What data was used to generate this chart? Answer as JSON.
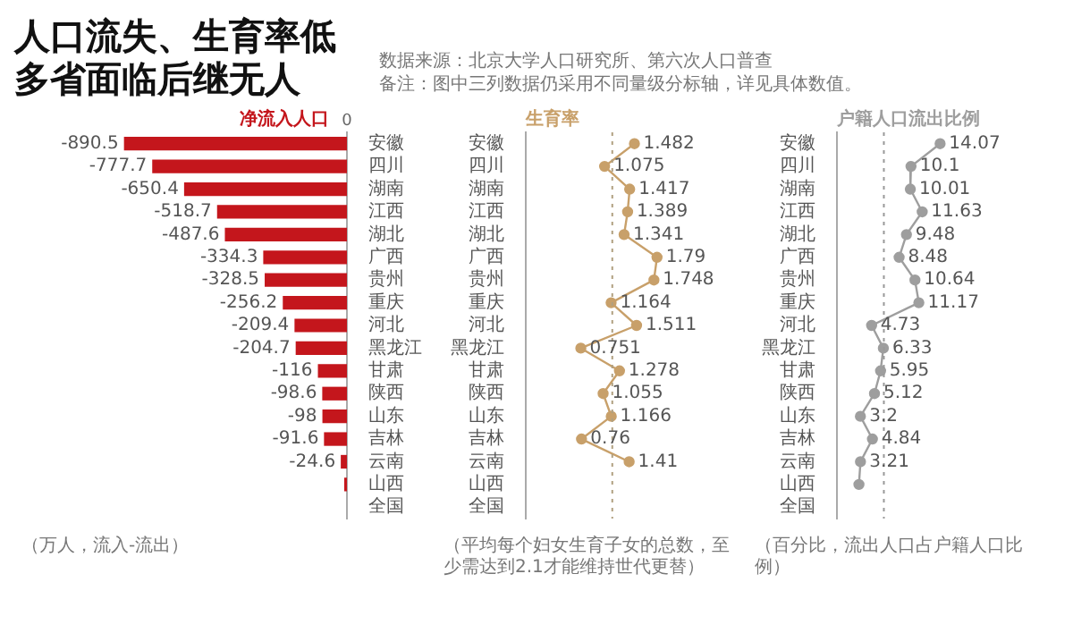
{
  "chart_data": [
    {
      "type": "bar",
      "orientation": "horizontal",
      "title": "人口流失、生育率低多省面临后继无人",
      "tick_labels": "y",
      "annotations": [
        "数据来源：北京大学人口研究所、第六次人口普查",
        "备注：图中三列数据仍采用不同量级分标轴，详见具体数值。",
        "0",
        "（万人，流入-流出）"
      ],
      "categories": [
        "安徽",
        "四川",
        "湖南",
        "江西",
        "湖北",
        "广西",
        "贵州",
        "重庆",
        "河北",
        "黑龙江",
        "甘肃",
        "陕西",
        "山东",
        "吉林",
        "云南",
        "山西",
        "全国"
      ],
      "series": [
        {
          "name": "净流入人口",
          "color": "#c4161c",
          "values": [
            -890.5,
            -777.7,
            -650.4,
            -518.7,
            -487.6,
            -334.3,
            -328.5,
            -256.2,
            -209.4,
            -204.7,
            -116,
            -98.6,
            -98,
            -91.6,
            -24.6,
            -11,
            null
          ],
          "value_labels": [
            "-890.5",
            "-777.7",
            "-650.4",
            "-518.7",
            "-487.6",
            "-334.3",
            "-328.5",
            "-256.2",
            "-209.4",
            "-204.7",
            "-116",
            "-98.6",
            "-98",
            "-91.6",
            "-24.6",
            null,
            null
          ]
        }
      ]
    },
    {
      "type": "line",
      "orientation": "horizontal",
      "tick_labels": "y",
      "marker": "circle",
      "annotations": [
        "（平均每个妇女生育子女的总数，至少需达到2.1才能维持世代更替）"
      ],
      "categories": [
        "安徽",
        "四川",
        "湖南",
        "江西",
        "湖北",
        "广西",
        "贵州",
        "重庆",
        "河北",
        "黑龙江",
        "甘肃",
        "陕西",
        "山东",
        "吉林",
        "云南",
        "山西",
        "全国"
      ],
      "series": [
        {
          "name": "生育率",
          "color": "#c8a06a",
          "values": [
            1.482,
            1.075,
            1.417,
            1.389,
            1.341,
            1.79,
            1.748,
            1.164,
            1.511,
            0.751,
            1.278,
            1.055,
            1.166,
            0.76,
            1.41,
            null,
            null
          ],
          "value_labels": [
            "1.482",
            "1.075",
            "1.417",
            "1.389",
            "1.341",
            "1.79",
            "1.748",
            "1.164",
            "1.511",
            "0.751",
            "1.278",
            "1.055",
            "1.166",
            "0.76",
            "1.41",
            null,
            null
          ]
        }
      ],
      "ref_lines": [
        {
          "axis": "x",
          "value": 1.18,
          "color": "#b0a080",
          "line_style": "dotted"
        }
      ]
    },
    {
      "type": "line",
      "orientation": "horizontal",
      "tick_labels": "y",
      "marker": "circle",
      "annotations": [
        "（百分比，流出人口占户籍人口比例）"
      ],
      "categories": [
        "安徽",
        "四川",
        "湖南",
        "江西",
        "湖北",
        "广西",
        "贵州",
        "重庆",
        "河北",
        "黑龙江",
        "甘肃",
        "陕西",
        "山东",
        "吉林",
        "云南",
        "山西",
        "全国"
      ],
      "series": [
        {
          "name": "户籍人口流出比例",
          "color": "#9e9e9e",
          "values": [
            14.07,
            10.1,
            10.01,
            11.63,
            9.48,
            8.48,
            10.64,
            11.17,
            4.73,
            6.33,
            5.95,
            5.12,
            3.2,
            4.84,
            3.21,
            3.0,
            null
          ],
          "value_labels": [
            "14.07",
            "10.1",
            "10.01",
            "11.63",
            "9.48",
            "8.48",
            "10.64",
            "11.17",
            "4.73",
            "6.33",
            "5.95",
            "5.12",
            "3.2",
            "4.84",
            "3.21",
            null,
            null
          ]
        }
      ],
      "ref_lines": [
        {
          "axis": "x",
          "value": 6.4,
          "color": "#999999",
          "line_style": "dotted"
        }
      ]
    }
  ]
}
